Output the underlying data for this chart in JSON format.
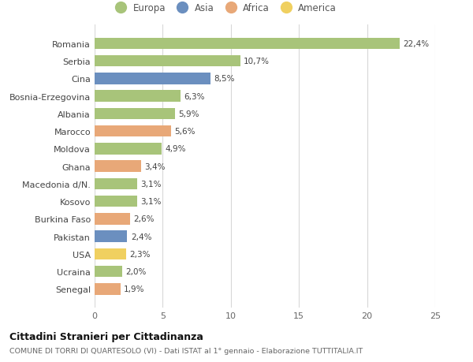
{
  "categories": [
    "Senegal",
    "Ucraina",
    "USA",
    "Pakistan",
    "Burkina Faso",
    "Kosovo",
    "Macedonia d/N.",
    "Ghana",
    "Moldova",
    "Marocco",
    "Albania",
    "Bosnia-Erzegovina",
    "Cina",
    "Serbia",
    "Romania"
  ],
  "values": [
    1.9,
    2.0,
    2.3,
    2.4,
    2.6,
    3.1,
    3.1,
    3.4,
    4.9,
    5.6,
    5.9,
    6.3,
    8.5,
    10.7,
    22.4
  ],
  "labels": [
    "1,9%",
    "2,0%",
    "2,3%",
    "2,4%",
    "2,6%",
    "3,1%",
    "3,1%",
    "3,4%",
    "4,9%",
    "5,6%",
    "5,9%",
    "6,3%",
    "8,5%",
    "10,7%",
    "22,4%"
  ],
  "continent": [
    "Africa",
    "Europa",
    "America",
    "Asia",
    "Africa",
    "Europa",
    "Europa",
    "Africa",
    "Europa",
    "Africa",
    "Europa",
    "Europa",
    "Asia",
    "Europa",
    "Europa"
  ],
  "colors": {
    "Europa": "#a8c47a",
    "Asia": "#6b8fbf",
    "Africa": "#e8a878",
    "America": "#f0d060"
  },
  "legend_order": [
    "Europa",
    "Asia",
    "Africa",
    "America"
  ],
  "title": "Cittadini Stranieri per Cittadinanza",
  "subtitle": "COMUNE DI TORRI DI QUARTESOLO (VI) - Dati ISTAT al 1° gennaio - Elaborazione TUTTITALIA.IT",
  "xlim": [
    0,
    25
  ],
  "xticks": [
    0,
    5,
    10,
    15,
    20,
    25
  ],
  "background_color": "#ffffff",
  "grid_color": "#d8d8d8"
}
